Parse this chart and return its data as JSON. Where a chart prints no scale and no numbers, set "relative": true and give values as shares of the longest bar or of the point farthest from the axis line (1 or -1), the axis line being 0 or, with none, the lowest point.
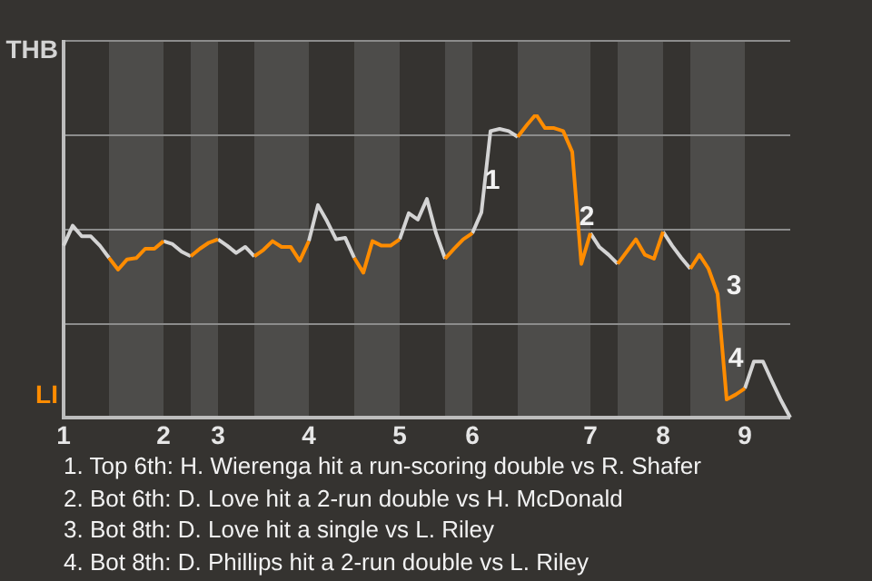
{
  "chart_data": {
    "type": "line",
    "categories": [
      "1",
      null,
      null,
      null,
      null,
      null,
      null,
      null,
      null,
      null,
      null,
      "2",
      null,
      null,
      null,
      null,
      null,
      "3",
      null,
      null,
      null,
      null,
      null,
      null,
      null,
      null,
      null,
      "4",
      null,
      null,
      null,
      null,
      null,
      null,
      null,
      null,
      null,
      "5",
      null,
      null,
      null,
      null,
      null,
      null,
      null,
      "6",
      null,
      null,
      null,
      null,
      null,
      null,
      null,
      null,
      null,
      null,
      null,
      null,
      "7",
      null,
      null,
      null,
      null,
      null,
      null,
      null,
      "8",
      null,
      null,
      null,
      null,
      null,
      null,
      null,
      null,
      "9",
      null,
      null,
      null,
      null,
      null
    ],
    "relative": true,
    "series": [
      {
        "name": "LI",
        "color": "#ff8c00",
        "values": [
          null,
          null,
          null,
          null,
          null,
          0.527,
          0.488,
          0.522,
          0.526,
          0.557,
          0.557,
          0.582,
          null,
          null,
          0.532,
          0.557,
          0.577,
          0.588,
          null,
          null,
          null,
          0.532,
          0.553,
          0.582,
          0.563,
          0.563,
          0.517,
          0.582,
          null,
          null,
          null,
          null,
          0.527,
          0.478,
          0.582,
          0.567,
          0.567,
          0.588,
          null,
          null,
          null,
          null,
          0.524,
          0.557,
          0.588,
          0.608,
          null,
          null,
          null,
          null,
          0.926,
          0.965,
          1,
          0.955,
          0.955,
          0.945,
          0.876,
          0.507,
          0.608,
          null,
          null,
          0.507,
          0.547,
          0.588,
          0.537,
          0.524,
          0.613,
          null,
          null,
          0.491,
          0.537,
          0.491,
          0.408,
          0.06,
          0.076,
          0.096,
          null,
          null,
          null,
          null,
          null
        ]
      },
      {
        "name": "THB",
        "color": "#d4d4d4",
        "values": [
          0.567,
          0.633,
          0.598,
          0.598,
          0.567,
          0.527,
          null,
          null,
          null,
          null,
          null,
          0.582,
          0.572,
          0.547,
          0.532,
          null,
          null,
          0.588,
          0.567,
          0.543,
          0.563,
          0.532,
          null,
          null,
          null,
          null,
          null,
          0.582,
          0.701,
          0.648,
          0.588,
          0.593,
          0.527,
          null,
          null,
          null,
          null,
          0.588,
          0.674,
          0.653,
          0.721,
          0.608,
          0.524,
          null,
          null,
          0.608,
          0.677,
          0.945,
          0.952,
          0.945,
          0.926,
          null,
          null,
          null,
          null,
          null,
          null,
          null,
          0.608,
          0.562,
          0.537,
          0.507,
          null,
          null,
          null,
          null,
          0.613,
          0.567,
          0.527,
          0.491,
          null,
          null,
          null,
          null,
          null,
          0.096,
          0.185,
          0.185,
          0.119,
          0.056,
          0
        ]
      }
    ],
    "legend": "left",
    "grid": "y",
    "marker": "none",
    "line_style": "solid",
    "annotations": [
      "1",
      "2",
      "3",
      "4",
      "1. Top 6th: H. Wierenga hit a run-scoring double vs R. Shafer",
      "2. Bot 6th: D. Love hit a 2-run double vs H. McDonald",
      "3. Bot 8th: D. Love hit a single vs L. Riley",
      "4. Bot 8th: D. Phillips hit a 2-run double vs L. Riley"
    ]
  }
}
